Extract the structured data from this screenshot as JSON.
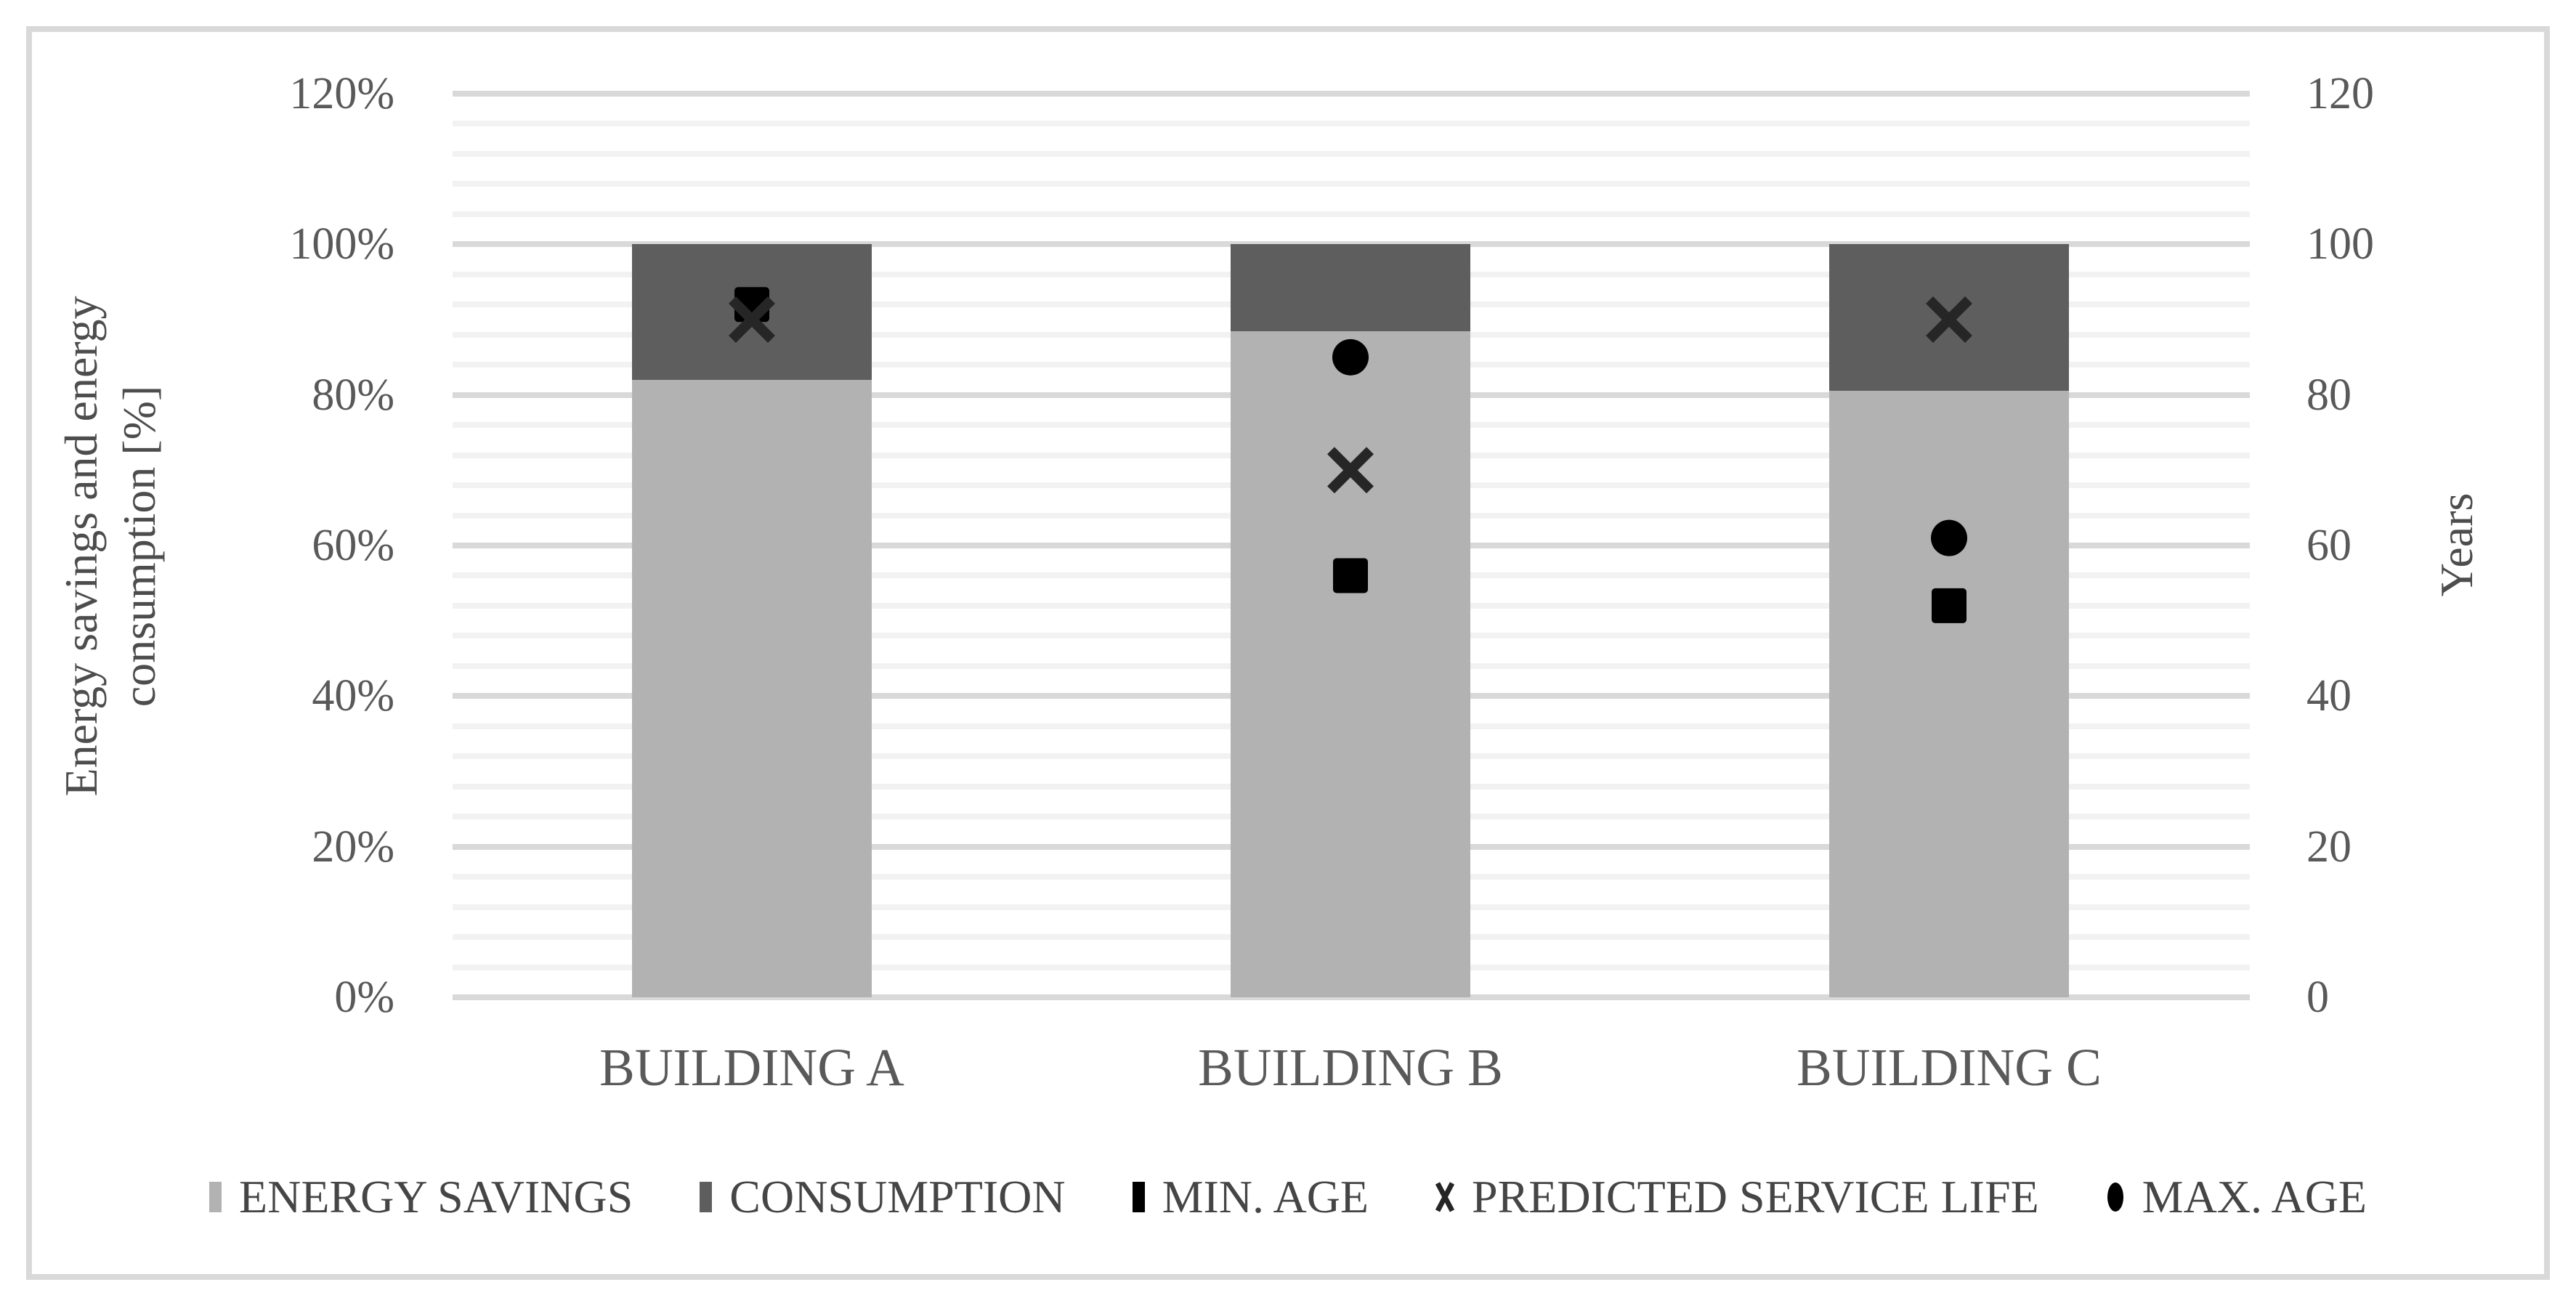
{
  "figure": {
    "background": "#ffffff",
    "border_color": "#d9d9d9"
  },
  "chart_data": {
    "type": "bar",
    "subtype": "stacked-column-with-scatter-markers",
    "title": "",
    "categories": [
      "BUILDING A",
      "BUILDING B",
      "BUILDING C"
    ],
    "series": [
      {
        "name": "ENERGY SAVINGS",
        "kind": "bar",
        "axis": "left",
        "unit": "%",
        "values": [
          82,
          88.5,
          80.5
        ],
        "color": "#b2b2b2"
      },
      {
        "name": "CONSUMPTION",
        "kind": "bar",
        "axis": "left",
        "unit": "%",
        "values": [
          18,
          11.5,
          19.5
        ],
        "color": "#5e5e5e"
      },
      {
        "name": "MIN. AGE",
        "kind": "scatter",
        "marker": "square",
        "axis": "right",
        "unit": "years",
        "values": [
          92,
          56,
          52
        ],
        "color": "#000000"
      },
      {
        "name": "PREDICTED SERVICE LIFE",
        "kind": "scatter",
        "marker": "x",
        "axis": "right",
        "unit": "years",
        "values": [
          90,
          70,
          90
        ],
        "color": "#262626"
      },
      {
        "name": "MAX. AGE",
        "kind": "scatter",
        "marker": "circle",
        "axis": "right",
        "unit": "years",
        "values": [
          null,
          85,
          61
        ],
        "color": "#000000"
      }
    ],
    "left_axis": {
      "title_lines": [
        "Energy savings and energy",
        "consumption [%]"
      ],
      "min": 0,
      "max": 120,
      "major_step": 20,
      "minor_step": 4,
      "tick_labels": [
        "0%",
        "20%",
        "40%",
        "60%",
        "80%",
        "100%",
        "120%"
      ]
    },
    "right_axis": {
      "title": "Years",
      "min": 0,
      "max": 120,
      "major_step": 20,
      "tick_labels": [
        "0",
        "20",
        "40",
        "60",
        "80",
        "100",
        "120"
      ]
    },
    "grid": {
      "minor_color": "#f2f2f2",
      "major_color": "#d9d9d9",
      "minor_on": true,
      "major_on": true
    },
    "legend_position": "bottom",
    "bars_total_percent": 100
  }
}
